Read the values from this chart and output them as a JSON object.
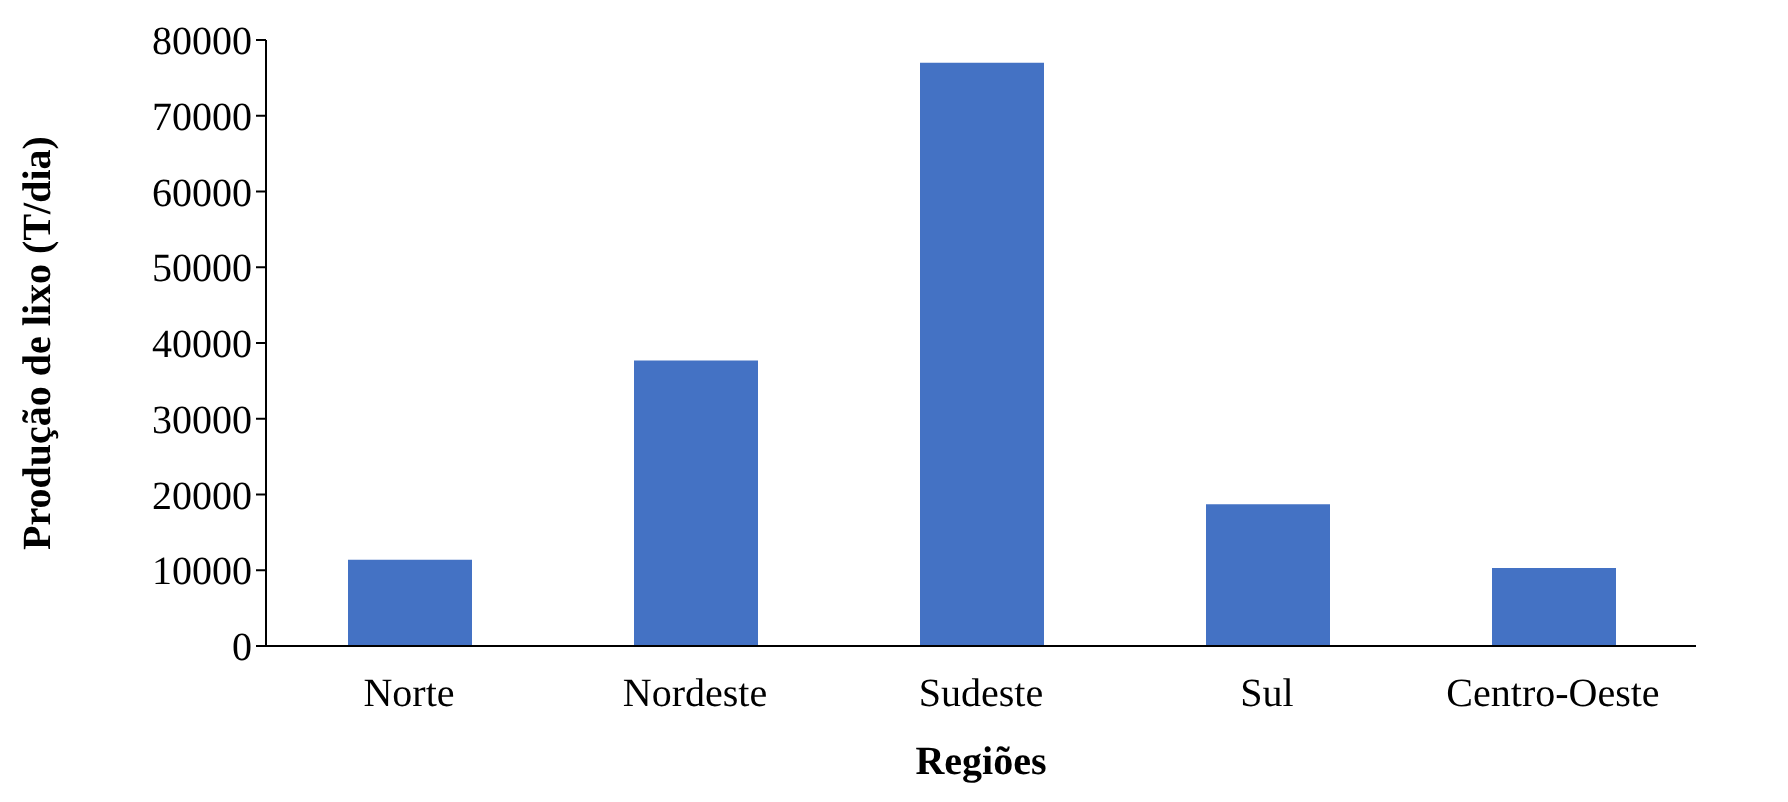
{
  "chart_data": {
    "type": "bar",
    "xlabel": "Regiões",
    "ylabel": "Produção de lixo (T/dia)",
    "categories": [
      "Norte",
      "Nordeste",
      "Sudeste",
      "Sul",
      "Centro-Oeste"
    ],
    "values": [
      11400,
      37700,
      77000,
      18700,
      10300
    ],
    "color": "#4472c4",
    "ylim": [
      0,
      80000
    ],
    "yticks": [
      0,
      10000,
      20000,
      30000,
      40000,
      50000,
      60000,
      70000,
      80000
    ],
    "grid": false
  }
}
